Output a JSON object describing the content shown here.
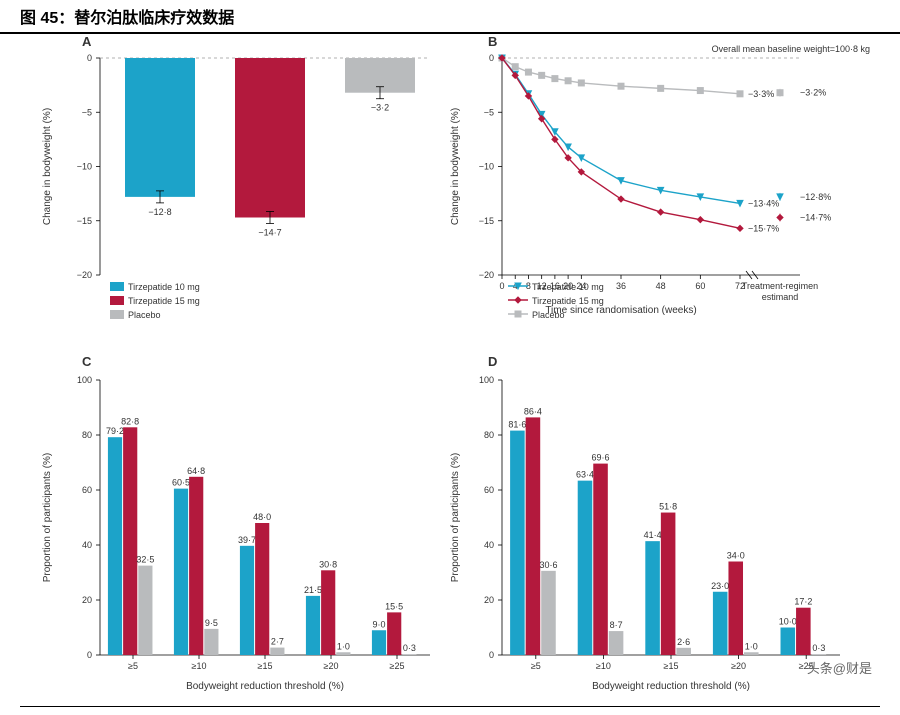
{
  "title": "图 45：替尔泊肽临床疗效数据",
  "colors": {
    "tirze10": "#1ca3c9",
    "tirze15": "#b3193d",
    "placebo": "#b9bbbd",
    "axis": "#000000",
    "grid": "#cccccc",
    "text": "#333333"
  },
  "legend": {
    "tirze10": "Tirzepatide 10 mg",
    "tirze15": "Tirzepatide 15 mg",
    "placebo": "Placebo"
  },
  "panelA": {
    "label": "A",
    "type": "bar",
    "ylabel": "Change in bodyweight (%)",
    "ylim": [
      -20,
      0
    ],
    "ytick_step": 5,
    "bars": [
      {
        "series": "tirze10",
        "value": -12.8,
        "label": "−12·8",
        "err": 0.5
      },
      {
        "series": "tirze15",
        "value": -14.7,
        "label": "−14·7",
        "err": 0.5
      },
      {
        "series": "placebo",
        "value": -3.2,
        "label": "−3·2",
        "err": 0.5
      }
    ]
  },
  "panelB": {
    "label": "B",
    "type": "line",
    "ylabel": "Change in bodyweight (%)",
    "xlabel": "Time since randomisation (weeks)",
    "ylim": [
      -20,
      0
    ],
    "ytick_step": 5,
    "xvals": [
      0,
      4,
      8,
      12,
      16,
      20,
      24,
      36,
      48,
      60,
      72
    ],
    "baseline_note": "Overall mean baseline weight=100·8 kg",
    "estimand_label": "Treatment-regimen estimand",
    "series": {
      "tirze10": {
        "marker": "triangle-down",
        "points": [
          0,
          -1.5,
          -3.3,
          -5.2,
          -6.8,
          -8.2,
          -9.2,
          -11.3,
          -12.2,
          -12.8,
          -13.4
        ],
        "final_label": "−13·4%",
        "estimand": -12.8,
        "estimand_label": "−12·8%"
      },
      "tirze15": {
        "marker": "diamond",
        "points": [
          0,
          -1.6,
          -3.5,
          -5.6,
          -7.5,
          -9.2,
          -10.5,
          -13.0,
          -14.2,
          -14.9,
          -15.7
        ],
        "final_label": "−15·7%",
        "estimand": -14.7,
        "estimand_label": "−14·7%"
      },
      "placebo": {
        "marker": "square",
        "points": [
          0,
          -0.8,
          -1.3,
          -1.6,
          -1.9,
          -2.1,
          -2.3,
          -2.6,
          -2.8,
          -3.0,
          -3.3
        ],
        "final_label": "−3·3%",
        "estimand": -3.2,
        "estimand_label": "−3·2%"
      }
    }
  },
  "panelC": {
    "label": "C",
    "type": "grouped-bar",
    "ylabel": "Proportion of participants (%)",
    "xlabel": "Bodyweight reduction threshold (%)",
    "ylim": [
      0,
      100
    ],
    "ytick_step": 20,
    "categories": [
      "≥5",
      "≥10",
      "≥15",
      "≥20",
      "≥25"
    ],
    "series_order": [
      "tirze10",
      "tirze15",
      "placebo"
    ],
    "data": {
      "tirze10": [
        79.2,
        60.5,
        39.7,
        21.5,
        9.0
      ],
      "tirze15": [
        82.8,
        64.8,
        48.0,
        30.8,
        15.5
      ],
      "placebo": [
        32.5,
        9.5,
        2.7,
        1.0,
        0.3
      ]
    },
    "labels": {
      "tirze10": [
        "79·2",
        "60·5",
        "39·7",
        "21·5",
        "9·0"
      ],
      "tirze15": [
        "82·8",
        "64·8",
        "48·0",
        "30·8",
        "15·5"
      ],
      "placebo": [
        "32·5",
        "9·5",
        "2·7",
        "1·0",
        "0·3"
      ]
    }
  },
  "panelD": {
    "label": "D",
    "type": "grouped-bar",
    "ylabel": "Proportion of participants (%)",
    "xlabel": "Bodyweight reduction threshold (%)",
    "ylim": [
      0,
      100
    ],
    "ytick_step": 20,
    "categories": [
      "≥5",
      "≥10",
      "≥15",
      "≥20",
      "≥25"
    ],
    "series_order": [
      "tirze10",
      "tirze15",
      "placebo"
    ],
    "data": {
      "tirze10": [
        81.6,
        63.4,
        41.4,
        23.0,
        10.0
      ],
      "tirze15": [
        86.4,
        69.6,
        51.8,
        34.0,
        17.2
      ],
      "placebo": [
        30.6,
        8.7,
        2.6,
        1.0,
        0.3
      ]
    },
    "labels": {
      "tirze10": [
        "81·6",
        "63·4",
        "41·4",
        "23·0",
        "10·0"
      ],
      "tirze15": [
        "86·4",
        "69·6",
        "51·8",
        "34·0",
        "17·2"
      ],
      "placebo": [
        "30·6",
        "8·7",
        "2·6",
        "1·0",
        "0·3"
      ]
    }
  },
  "watermark": "头条@财是"
}
